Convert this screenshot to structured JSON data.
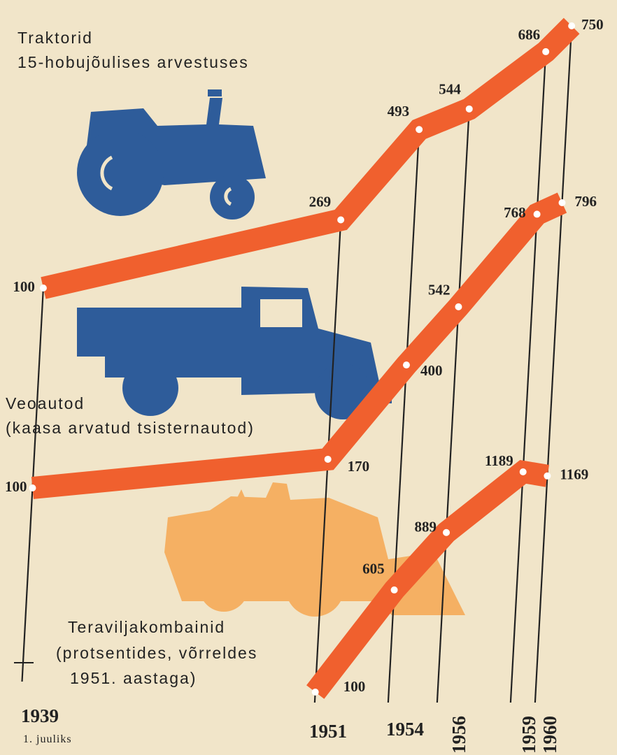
{
  "chart_data": {
    "type": "line",
    "x": [
      1939,
      1951,
      1954,
      1956,
      1959,
      1960
    ],
    "xticks": [
      1939,
      1951,
      1954,
      1956,
      1959,
      1960
    ],
    "first_tick_note": "1. juuliks",
    "series": [
      {
        "name": "Traktorid",
        "note": [
          "15-hobujõulises arvestuses"
        ],
        "color": "#f0602e",
        "values": [
          100,
          269,
          493,
          544,
          686,
          750
        ]
      },
      {
        "name": "Veoautod",
        "note": [
          "(kaasa arvatud tsisternautod)"
        ],
        "color": "#f0602e",
        "values": [
          100,
          170,
          400,
          542,
          768,
          796
        ]
      },
      {
        "name": "Teraviljakombainid",
        "note": [
          "(protsentides, võrreldes",
          "1951. aastaga)"
        ],
        "color": "#f0602e",
        "values": [
          null,
          100,
          605,
          889,
          1189,
          1169
        ]
      }
    ]
  }
}
